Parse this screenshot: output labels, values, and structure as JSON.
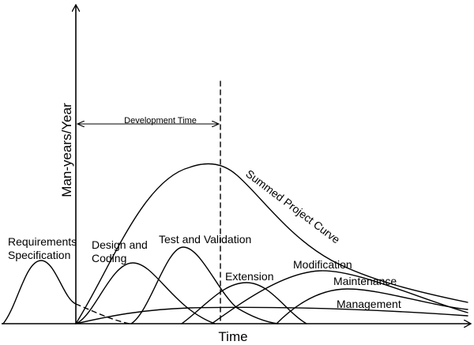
{
  "axes": {
    "x_label": "Time",
    "y_label": "Man-years/Year"
  },
  "annotations": {
    "development_time": "Development Time"
  },
  "curves": {
    "summed_project_curve": "Summed Project Curve",
    "requirements_specification_line1": "Requirements",
    "requirements_specification_line2": "Specification",
    "design_and_coding_line1": "Design and",
    "design_and_coding_line2": "Coding",
    "test_and_validation": "Test and Validation",
    "extension": "Extension",
    "modification": "Modification",
    "maintenance": "Maintenance",
    "management": "Management"
  }
}
